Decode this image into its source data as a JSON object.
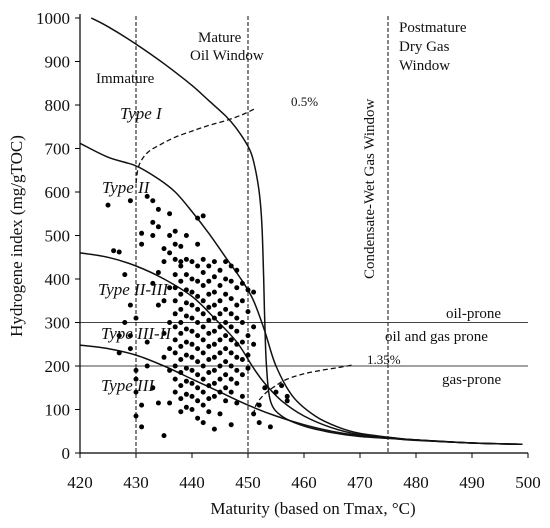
{
  "chart_data": {
    "type": "scatter",
    "xlabel": "Maturity (based on Tmax, °C)",
    "ylabel": "Hydrogene index (mg/gTOC)",
    "xlim": [
      420,
      500
    ],
    "ylim": [
      0,
      1000
    ],
    "xticks": [
      420,
      430,
      440,
      450,
      460,
      470,
      480,
      490,
      500
    ],
    "yticks": [
      0,
      100,
      200,
      300,
      400,
      500,
      600,
      700,
      800,
      900,
      1000
    ],
    "zone_boundaries": [
      430,
      450,
      475
    ],
    "zone_labels": {
      "immature": "Immature",
      "mature": [
        "Mature",
        "Oil Window"
      ],
      "condensate": "Condensate-Wet Gas Window",
      "postmature": [
        "Postmature",
        "Dry Gas",
        "Window"
      ]
    },
    "hi_boundaries": [
      300,
      200
    ],
    "region_labels": {
      "oil_prone": "oil-prone",
      "oil_gas_prone": "oil and gas prone",
      "gas_prone": "gas-prone"
    },
    "type_labels": {
      "type1": "Type I",
      "type2": "Type II",
      "type2_3": "Type II-III",
      "type3_2": "Type III-II",
      "type3": "Type III"
    },
    "curves": [
      {
        "id": "type1",
        "x": [
          422,
          425,
          430,
          435,
          440,
          443,
          446,
          448,
          450,
          451,
          452,
          452.5,
          452.8,
          453,
          453.3,
          454,
          456,
          460,
          465,
          470,
          480,
          490,
          499
        ],
        "y": [
          1000,
          980,
          940,
          895,
          845,
          810,
          775,
          745,
          705,
          670,
          600,
          520,
          400,
          300,
          200,
          120,
          85,
          62,
          47,
          38,
          30,
          23,
          20
        ]
      },
      {
        "id": "type2",
        "x": [
          420,
          425,
          430,
          434,
          437,
          440,
          443,
          446,
          449,
          451,
          453,
          455,
          458,
          462,
          466,
          470,
          476,
          480,
          490,
          499
        ],
        "y": [
          712,
          680,
          660,
          630,
          600,
          555,
          505,
          450,
          395,
          350,
          280,
          200,
          130,
          85,
          60,
          45,
          35,
          30,
          23,
          20
        ]
      },
      {
        "id": "type2_3",
        "x": [
          420,
          425,
          430,
          435,
          440,
          444,
          448,
          451,
          453,
          456,
          460,
          465,
          470,
          476,
          480,
          490,
          499
        ],
        "y": [
          460,
          450,
          430,
          400,
          360,
          310,
          255,
          195,
          160,
          120,
          85,
          58,
          42,
          34,
          30,
          23,
          20
        ]
      },
      {
        "id": "type3",
        "x": [
          420,
          425,
          430,
          435,
          440,
          445,
          450,
          455,
          460,
          465,
          470,
          476,
          480,
          490,
          499
        ],
        "y": [
          248,
          240,
          225,
          200,
          170,
          140,
          110,
          85,
          65,
          50,
          40,
          33,
          29,
          23,
          20
        ]
      }
    ],
    "vr_lines": [
      {
        "label": "0.5%",
        "x": [
          430,
          430.5,
          432,
          434.5,
          437,
          440,
          443,
          446,
          449,
          451.5
        ],
        "y": [
          620,
          660,
          690,
          710,
          726,
          740,
          753,
          764,
          778,
          793
        ]
      },
      {
        "label": "1.35%",
        "x": [
          451,
          451.5,
          453,
          455,
          457,
          460,
          463,
          466,
          468.5
        ],
        "y": [
          88,
          112,
          136,
          155,
          170,
          182,
          190,
          196,
          202
        ]
      }
    ],
    "points": [
      [
        425,
        570
      ],
      [
        426,
        465
      ],
      [
        427,
        462
      ],
      [
        428,
        410
      ],
      [
        429,
        580
      ],
      [
        431,
        505
      ],
      [
        431,
        480
      ],
      [
        432,
        590
      ],
      [
        433,
        580
      ],
      [
        433,
        530
      ],
      [
        433,
        500
      ],
      [
        434,
        560
      ],
      [
        434,
        520
      ],
      [
        435,
        470
      ],
      [
        435,
        440
      ],
      [
        436,
        550
      ],
      [
        436,
        500
      ],
      [
        436,
        460
      ],
      [
        437,
        480
      ],
      [
        437,
        510
      ],
      [
        438,
        475
      ],
      [
        438,
        440
      ],
      [
        439,
        500
      ],
      [
        441,
        480
      ],
      [
        441,
        540
      ],
      [
        442,
        545
      ],
      [
        427,
        270
      ],
      [
        427,
        230
      ],
      [
        428,
        300
      ],
      [
        429,
        340
      ],
      [
        429,
        270
      ],
      [
        429,
        240
      ],
      [
        430,
        310
      ],
      [
        430,
        190
      ],
      [
        430,
        170
      ],
      [
        430,
        140
      ],
      [
        430,
        85
      ],
      [
        431,
        110
      ],
      [
        431,
        60
      ],
      [
        432,
        255
      ],
      [
        432,
        200
      ],
      [
        433,
        150
      ],
      [
        434,
        115
      ],
      [
        435,
        40
      ],
      [
        433,
        390
      ],
      [
        434,
        415
      ],
      [
        434,
        340
      ],
      [
        435,
        275
      ],
      [
        435,
        350
      ],
      [
        435,
        220
      ],
      [
        436,
        380
      ],
      [
        436,
        300
      ],
      [
        436,
        240
      ],
      [
        436,
        190
      ],
      [
        436,
        115
      ],
      [
        437,
        445
      ],
      [
        437,
        410
      ],
      [
        437,
        380
      ],
      [
        437,
        350
      ],
      [
        437,
        320
      ],
      [
        437,
        290
      ],
      [
        437,
        260
      ],
      [
        437,
        230
      ],
      [
        437,
        200
      ],
      [
        437,
        170
      ],
      [
        437,
        140
      ],
      [
        438,
        430
      ],
      [
        438,
        395
      ],
      [
        438,
        365
      ],
      [
        438,
        330
      ],
      [
        438,
        300
      ],
      [
        438,
        275
      ],
      [
        438,
        245
      ],
      [
        438,
        215
      ],
      [
        438,
        185
      ],
      [
        438,
        155
      ],
      [
        438,
        125
      ],
      [
        438,
        95
      ],
      [
        439,
        445
      ],
      [
        439,
        410
      ],
      [
        439,
        375
      ],
      [
        439,
        345
      ],
      [
        439,
        315
      ],
      [
        439,
        285
      ],
      [
        439,
        255
      ],
      [
        439,
        225
      ],
      [
        439,
        195
      ],
      [
        439,
        165
      ],
      [
        439,
        135
      ],
      [
        439,
        105
      ],
      [
        440,
        440
      ],
      [
        440,
        400
      ],
      [
        440,
        370
      ],
      [
        440,
        340
      ],
      [
        440,
        310
      ],
      [
        440,
        280
      ],
      [
        440,
        250
      ],
      [
        440,
        220
      ],
      [
        440,
        190
      ],
      [
        440,
        160
      ],
      [
        440,
        130
      ],
      [
        440,
        100
      ],
      [
        441,
        430
      ],
      [
        441,
        395
      ],
      [
        441,
        360
      ],
      [
        441,
        330
      ],
      [
        441,
        300
      ],
      [
        441,
        270
      ],
      [
        441,
        240
      ],
      [
        441,
        210
      ],
      [
        441,
        180
      ],
      [
        441,
        150
      ],
      [
        441,
        120
      ],
      [
        441,
        80
      ],
      [
        442,
        445
      ],
      [
        442,
        415
      ],
      [
        442,
        385
      ],
      [
        442,
        350
      ],
      [
        442,
        320
      ],
      [
        442,
        290
      ],
      [
        442,
        260
      ],
      [
        442,
        230
      ],
      [
        442,
        200
      ],
      [
        442,
        170
      ],
      [
        442,
        140
      ],
      [
        442,
        110
      ],
      [
        442,
        70
      ],
      [
        443,
        430
      ],
      [
        443,
        395
      ],
      [
        443,
        365
      ],
      [
        443,
        335
      ],
      [
        443,
        305
      ],
      [
        443,
        275
      ],
      [
        443,
        245
      ],
      [
        443,
        215
      ],
      [
        443,
        185
      ],
      [
        443,
        155
      ],
      [
        443,
        125
      ],
      [
        443,
        95
      ],
      [
        444,
        440
      ],
      [
        444,
        405
      ],
      [
        444,
        370
      ],
      [
        444,
        340
      ],
      [
        444,
        310
      ],
      [
        444,
        280
      ],
      [
        444,
        250
      ],
      [
        444,
        220
      ],
      [
        444,
        190
      ],
      [
        444,
        160
      ],
      [
        444,
        130
      ],
      [
        444,
        55
      ],
      [
        445,
        420
      ],
      [
        445,
        385
      ],
      [
        445,
        350
      ],
      [
        445,
        320
      ],
      [
        445,
        290
      ],
      [
        445,
        260
      ],
      [
        445,
        230
      ],
      [
        445,
        200
      ],
      [
        445,
        170
      ],
      [
        445,
        140
      ],
      [
        445,
        90
      ],
      [
        446,
        440
      ],
      [
        446,
        400
      ],
      [
        446,
        365
      ],
      [
        446,
        330
      ],
      [
        446,
        300
      ],
      [
        446,
        270
      ],
      [
        446,
        240
      ],
      [
        446,
        210
      ],
      [
        446,
        180
      ],
      [
        446,
        150
      ],
      [
        446,
        120
      ],
      [
        447,
        430
      ],
      [
        447,
        395
      ],
      [
        447,
        355
      ],
      [
        447,
        320
      ],
      [
        447,
        290
      ],
      [
        447,
        260
      ],
      [
        447,
        230
      ],
      [
        447,
        200
      ],
      [
        447,
        170
      ],
      [
        447,
        140
      ],
      [
        447,
        65
      ],
      [
        448,
        420
      ],
      [
        448,
        380
      ],
      [
        448,
        340
      ],
      [
        448,
        310
      ],
      [
        448,
        280
      ],
      [
        448,
        250
      ],
      [
        448,
        220
      ],
      [
        448,
        190
      ],
      [
        448,
        160
      ],
      [
        448,
        115
      ],
      [
        449,
        390
      ],
      [
        449,
        350
      ],
      [
        449,
        300
      ],
      [
        449,
        255
      ],
      [
        449,
        215
      ],
      [
        449,
        180
      ],
      [
        449,
        130
      ],
      [
        450,
        375
      ],
      [
        450,
        325
      ],
      [
        450,
        270
      ],
      [
        450,
        225
      ],
      [
        450,
        195
      ],
      [
        451,
        370
      ],
      [
        451,
        290
      ],
      [
        451,
        250
      ],
      [
        451,
        90
      ],
      [
        452,
        110
      ],
      [
        452,
        70
      ],
      [
        453,
        150
      ],
      [
        454,
        60
      ],
      [
        455,
        140
      ],
      [
        456,
        155
      ],
      [
        457,
        130
      ],
      [
        457,
        120
      ]
    ]
  }
}
